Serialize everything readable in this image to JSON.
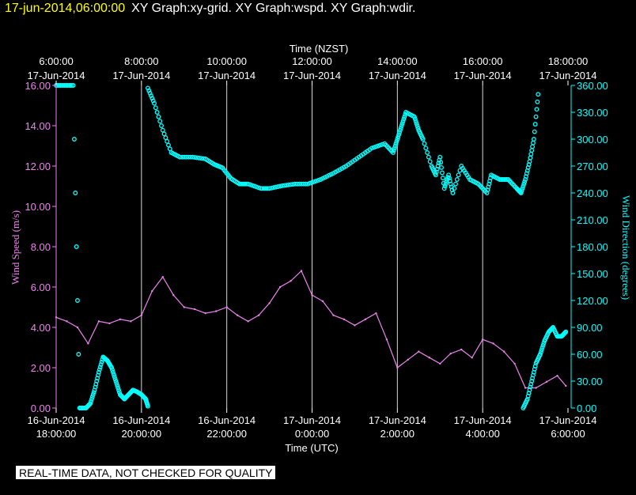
{
  "header": {
    "timestamp": "17-jun-2014,06:00:00",
    "title": "XY Graph:xy-grid.  XY Graph:wspd.  XY Graph:wdir."
  },
  "notice": "REAL-TIME DATA, NOT CHECKED FOR QUALITY",
  "colors": {
    "wind_speed": "#ee82ee",
    "wind_direction": "#00ffff",
    "grid": "#ffffff"
  },
  "chart_data": {
    "type": "line",
    "grid": true,
    "x_top_label": "Time (NZST)",
    "x_bottom_label": "Time (UTC)",
    "y_left_label": "Wind Speed (m/s)",
    "y_right_label": "Wind Direction (degrees)",
    "x_range_hours_utc": [
      18,
      30
    ],
    "x_ticks_bottom": [
      {
        "hour": 18,
        "date": "16-Jun-2014",
        "time": "18:00:00"
      },
      {
        "hour": 20,
        "date": "16-Jun-2014",
        "time": "20:00:00"
      },
      {
        "hour": 22,
        "date": "16-Jun-2014",
        "time": "22:00:00"
      },
      {
        "hour": 24,
        "date": "17-Jun-2014",
        "time": "0:00:00"
      },
      {
        "hour": 26,
        "date": "17-Jun-2014",
        "time": "2:00:00"
      },
      {
        "hour": 28,
        "date": "17-Jun-2014",
        "time": "4:00:00"
      },
      {
        "hour": 30,
        "date": "17-Jun-2014",
        "time": "6:00:00"
      }
    ],
    "x_ticks_top": [
      {
        "hour": 18,
        "time": "6:00:00",
        "date": "17-Jun-2014"
      },
      {
        "hour": 20,
        "time": "8:00:00",
        "date": "17-Jun-2014"
      },
      {
        "hour": 22,
        "time": "10:00:00",
        "date": "17-Jun-2014"
      },
      {
        "hour": 24,
        "time": "12:00:00",
        "date": "17-Jun-2014"
      },
      {
        "hour": 26,
        "time": "14:00:00",
        "date": "17-Jun-2014"
      },
      {
        "hour": 28,
        "time": "16:00:00",
        "date": "17-Jun-2014"
      },
      {
        "hour": 30,
        "time": "18:00:00",
        "date": "17-Jun-2014"
      }
    ],
    "y_left_range": [
      0,
      16
    ],
    "y_left_ticks": [
      "0.00",
      "2.00",
      "4.00",
      "6.00",
      "8.00",
      "10.00",
      "12.00",
      "14.00",
      "16.00"
    ],
    "y_right_range": [
      0,
      360
    ],
    "y_right_ticks": [
      "0.00",
      "30.00",
      "60.00",
      "90.00",
      "120.00",
      "150.00",
      "180.00",
      "210.00",
      "240.00",
      "270.00",
      "300.00",
      "330.00",
      "360.00"
    ],
    "series": [
      {
        "name": "Wind Speed (m/s)",
        "style": "line",
        "x": [
          18.0,
          18.25,
          18.5,
          18.75,
          19.0,
          19.25,
          19.5,
          19.75,
          20.0,
          20.25,
          20.5,
          20.75,
          21.0,
          21.25,
          21.5,
          21.75,
          22.0,
          22.25,
          22.5,
          22.75,
          23.0,
          23.25,
          23.5,
          23.75,
          24.0,
          24.25,
          24.5,
          24.75,
          25.0,
          25.25,
          25.5,
          25.75,
          26.0,
          26.25,
          26.5,
          26.75,
          27.0,
          27.25,
          27.5,
          27.75,
          28.0,
          28.25,
          28.5,
          28.75,
          29.0,
          29.25,
          29.5,
          29.75,
          29.95
        ],
        "y": [
          4.5,
          4.3,
          4.0,
          3.2,
          4.3,
          4.2,
          4.4,
          4.3,
          4.6,
          5.8,
          6.5,
          5.6,
          5.0,
          4.9,
          4.7,
          4.8,
          5.0,
          4.6,
          4.3,
          4.6,
          5.2,
          6.0,
          6.3,
          6.8,
          5.6,
          5.3,
          4.6,
          4.4,
          4.1,
          4.4,
          4.7,
          3.4,
          2.0,
          2.4,
          2.8,
          2.5,
          2.2,
          2.7,
          2.9,
          2.5,
          3.4,
          3.2,
          2.8,
          2.2,
          1.0,
          1.0,
          1.3,
          1.6,
          1.1
        ]
      },
      {
        "name": "Wind Direction (degrees)",
        "style": "markers",
        "segments": [
          {
            "x": [
              18.0,
              18.2,
              18.4,
              18.55,
              18.7,
              18.8,
              18.9,
              19.0,
              19.1,
              19.2,
              19.3,
              19.4,
              19.5,
              19.6,
              19.7,
              19.8,
              19.9,
              20.0,
              20.1,
              20.15
            ],
            "y": [
              360,
              360,
              360,
              0,
              0,
              5,
              20,
              40,
              57,
              53,
              45,
              30,
              15,
              10,
              15,
              20,
              18,
              15,
              10,
              2
            ]
          },
          {
            "x": [
              20.15,
              20.3,
              20.5,
              20.7,
              20.9,
              21.2,
              21.5,
              21.7,
              21.9,
              22.1,
              22.3,
              22.5,
              22.8,
              23.0,
              23.3,
              23.6,
              23.9,
              24.2,
              24.5,
              24.8,
              25.1,
              25.4,
              25.7,
              25.9,
              26.0,
              26.1,
              26.2,
              26.4,
              26.5,
              26.6,
              26.8,
              26.9,
              27.0,
              27.1,
              27.2,
              27.3,
              27.5,
              27.7,
              27.9,
              28.1,
              28.2,
              28.4,
              28.6,
              28.8,
              28.9,
              29.0,
              29.1,
              29.2,
              29.3
            ],
            "y": [
              357,
              340,
              310,
              285,
              280,
              280,
              278,
              272,
              268,
              256,
              250,
              250,
              245,
              245,
              248,
              250,
              250,
              255,
              262,
              270,
              280,
              290,
              295,
              285,
              300,
              315,
              330,
              325,
              310,
              300,
              270,
              260,
              280,
              245,
              260,
              240,
              270,
              255,
              250,
              240,
              260,
              255,
              255,
              245,
              240,
              255,
              275,
              300,
              350
            ]
          },
          {
            "x": [
              28.95,
              29.05,
              29.15,
              29.25,
              29.35,
              29.45,
              29.55,
              29.65,
              29.75,
              29.85,
              29.95
            ],
            "y": [
              0,
              10,
              30,
              50,
              60,
              75,
              85,
              90,
              80,
              80,
              85
            ]
          }
        ]
      }
    ]
  }
}
